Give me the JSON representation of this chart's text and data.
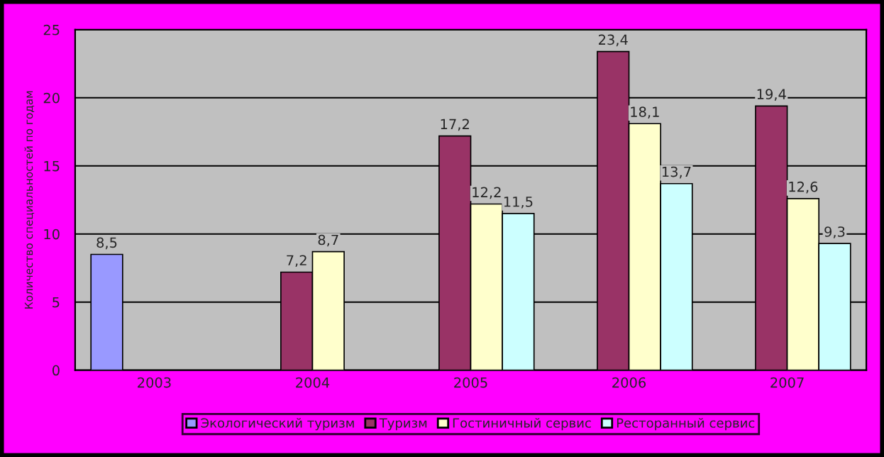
{
  "chart_data": {
    "type": "bar",
    "ylabel": "Количество специальностей по годам",
    "categories": [
      "2003",
      "2004",
      "2005",
      "2006",
      "2007"
    ],
    "series": [
      {
        "name": "Экологический туризм",
        "color": "#9999ff",
        "values": [
          8.5,
          null,
          null,
          null,
          null
        ],
        "value_labels": [
          "8,5",
          null,
          null,
          null,
          null
        ]
      },
      {
        "name": "Туризм",
        "color": "#993366",
        "values": [
          null,
          7.2,
          17.2,
          23.4,
          19.4
        ],
        "value_labels": [
          null,
          "7,2",
          "17,2",
          "23,4",
          "19,4"
        ]
      },
      {
        "name": "Гостиничный сервис",
        "color": "#ffffcc",
        "values": [
          null,
          8.7,
          12.2,
          18.1,
          12.6
        ],
        "value_labels": [
          null,
          "8,7",
          "12,2",
          "18,1",
          "12,6"
        ]
      },
      {
        "name": "Ресторанный сервис",
        "color": "#ccffff",
        "values": [
          null,
          null,
          11.5,
          13.7,
          9.3
        ],
        "value_labels": [
          null,
          null,
          "11,5",
          "13,7",
          "9,3"
        ]
      }
    ],
    "ylim": [
      0,
      25
    ],
    "yticks": [
      0,
      5,
      10,
      15,
      20,
      25
    ],
    "grid": "y",
    "legend": "bottom"
  }
}
